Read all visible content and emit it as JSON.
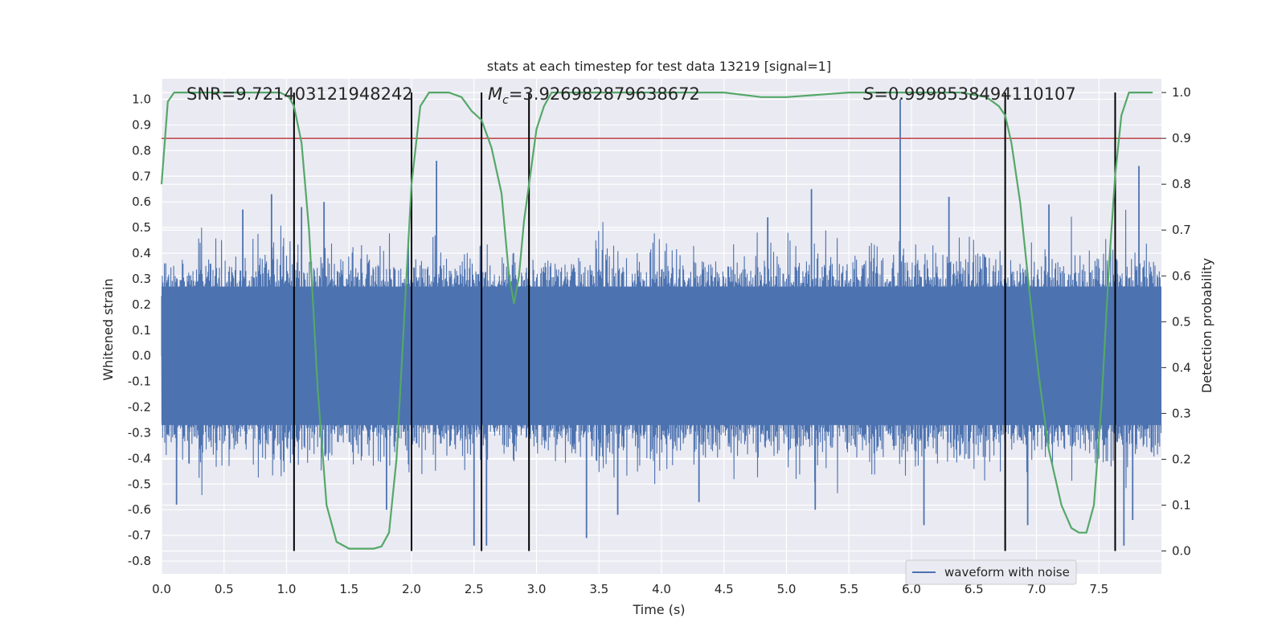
{
  "chart_data": {
    "type": "line",
    "title": "stats at each timestep for test data 13219 [signal=1]",
    "xlabel": "Time (s)",
    "ylabel_left": "Whitened strain",
    "ylabel_right": "Detection probability",
    "xlim": [
      0,
      8
    ],
    "ylim_left": [
      -0.85,
      1.08
    ],
    "ylim_right": [
      -0.05,
      1.03
    ],
    "x_ticks": [
      "0.0",
      "0.5",
      "1.0",
      "1.5",
      "2.0",
      "2.5",
      "3.0",
      "3.5",
      "4.0",
      "4.5",
      "5.0",
      "5.5",
      "6.0",
      "6.5",
      "7.0",
      "7.5"
    ],
    "y_left_ticks": [
      "-0.8",
      "-0.7",
      "-0.6",
      "-0.5",
      "-0.4",
      "-0.3",
      "-0.2",
      "-0.1",
      "0.0",
      "0.1",
      "0.2",
      "0.3",
      "0.4",
      "0.5",
      "0.6",
      "0.7",
      "0.8",
      "0.9",
      "1.0"
    ],
    "y_right_ticks": [
      "0.0",
      "0.1",
      "0.2",
      "0.3",
      "0.4",
      "0.5",
      "0.6",
      "0.7",
      "0.8",
      "0.9",
      "1.0"
    ],
    "threshold": 0.9,
    "grid": true,
    "legend_position": "lower-right",
    "stats": {
      "snr": "SNR=9.721403121948242",
      "mc_symbol": "M",
      "mc_sub": "c",
      "mc_value": "=3.926982879638672",
      "s_symbol": "S",
      "s_value": "=0.9998538494110107"
    },
    "vertical_lines_x": [
      1.06,
      2.0,
      2.56,
      2.94,
      6.75,
      7.63
    ],
    "series": [
      {
        "name": "waveform with noise",
        "kind": "strain",
        "color": "#4c72b0",
        "spikes": [
          {
            "x": 0.22,
            "y": -0.42
          },
          {
            "x": 0.65,
            "y": 0.57
          },
          {
            "x": 0.88,
            "y": 0.63
          },
          {
            "x": 1.12,
            "y": 0.58
          },
          {
            "x": 1.3,
            "y": 0.6
          },
          {
            "x": 2.2,
            "y": 0.76
          },
          {
            "x": 2.5,
            "y": -0.74
          },
          {
            "x": 2.6,
            "y": -0.74
          },
          {
            "x": 3.4,
            "y": -0.71
          },
          {
            "x": 3.65,
            "y": -0.62
          },
          {
            "x": 5.2,
            "y": 0.65
          },
          {
            "x": 5.23,
            "y": -0.6
          },
          {
            "x": 5.91,
            "y": 1.0
          },
          {
            "x": 6.1,
            "y": -0.66
          },
          {
            "x": 6.93,
            "y": -0.66
          },
          {
            "x": 7.1,
            "y": 0.59
          },
          {
            "x": 7.7,
            "y": -0.74
          },
          {
            "x": 7.82,
            "y": 0.74
          },
          {
            "x": 4.3,
            "y": -0.57
          },
          {
            "x": 0.12,
            "y": -0.58
          },
          {
            "x": 1.8,
            "y": -0.6
          },
          {
            "x": 7.77,
            "y": -0.64
          },
          {
            "x": 4.85,
            "y": 0.54
          },
          {
            "x": 6.3,
            "y": 0.62
          }
        ]
      },
      {
        "name": "detection probability",
        "kind": "probability",
        "color": "#55a868",
        "x": [
          0.0,
          0.05,
          0.1,
          0.2,
          0.4,
          0.6,
          0.8,
          0.95,
          1.02,
          1.06,
          1.12,
          1.18,
          1.25,
          1.32,
          1.4,
          1.5,
          1.6,
          1.7,
          1.76,
          1.82,
          1.88,
          1.94,
          2.0,
          2.07,
          2.14,
          2.2,
          2.3,
          2.4,
          2.48,
          2.56,
          2.64,
          2.72,
          2.78,
          2.82,
          2.86,
          2.9,
          2.94,
          3.0,
          3.06,
          3.12,
          3.2,
          3.3,
          3.5,
          4.0,
          4.5,
          4.8,
          5.0,
          5.5,
          6.0,
          6.4,
          6.6,
          6.7,
          6.75,
          6.8,
          6.87,
          6.95,
          7.02,
          7.1,
          7.2,
          7.28,
          7.34,
          7.4,
          7.46,
          7.52,
          7.58,
          7.63,
          7.68,
          7.74,
          7.8,
          7.86,
          7.93
        ],
        "y": [
          0.8,
          0.98,
          1.0,
          1.0,
          1.0,
          1.0,
          1.0,
          1.0,
          0.99,
          0.97,
          0.89,
          0.7,
          0.35,
          0.1,
          0.02,
          0.005,
          0.005,
          0.005,
          0.01,
          0.04,
          0.2,
          0.5,
          0.8,
          0.97,
          1.0,
          1.0,
          1.0,
          0.99,
          0.96,
          0.94,
          0.88,
          0.78,
          0.6,
          0.54,
          0.6,
          0.72,
          0.8,
          0.92,
          0.97,
          1.0,
          1.0,
          1.0,
          1.0,
          1.0,
          1.0,
          0.99,
          0.99,
          1.0,
          1.0,
          1.0,
          0.99,
          0.97,
          0.95,
          0.89,
          0.76,
          0.55,
          0.38,
          0.22,
          0.1,
          0.05,
          0.04,
          0.04,
          0.1,
          0.32,
          0.62,
          0.82,
          0.95,
          1.0,
          1.0,
          1.0,
          1.0
        ]
      }
    ]
  }
}
